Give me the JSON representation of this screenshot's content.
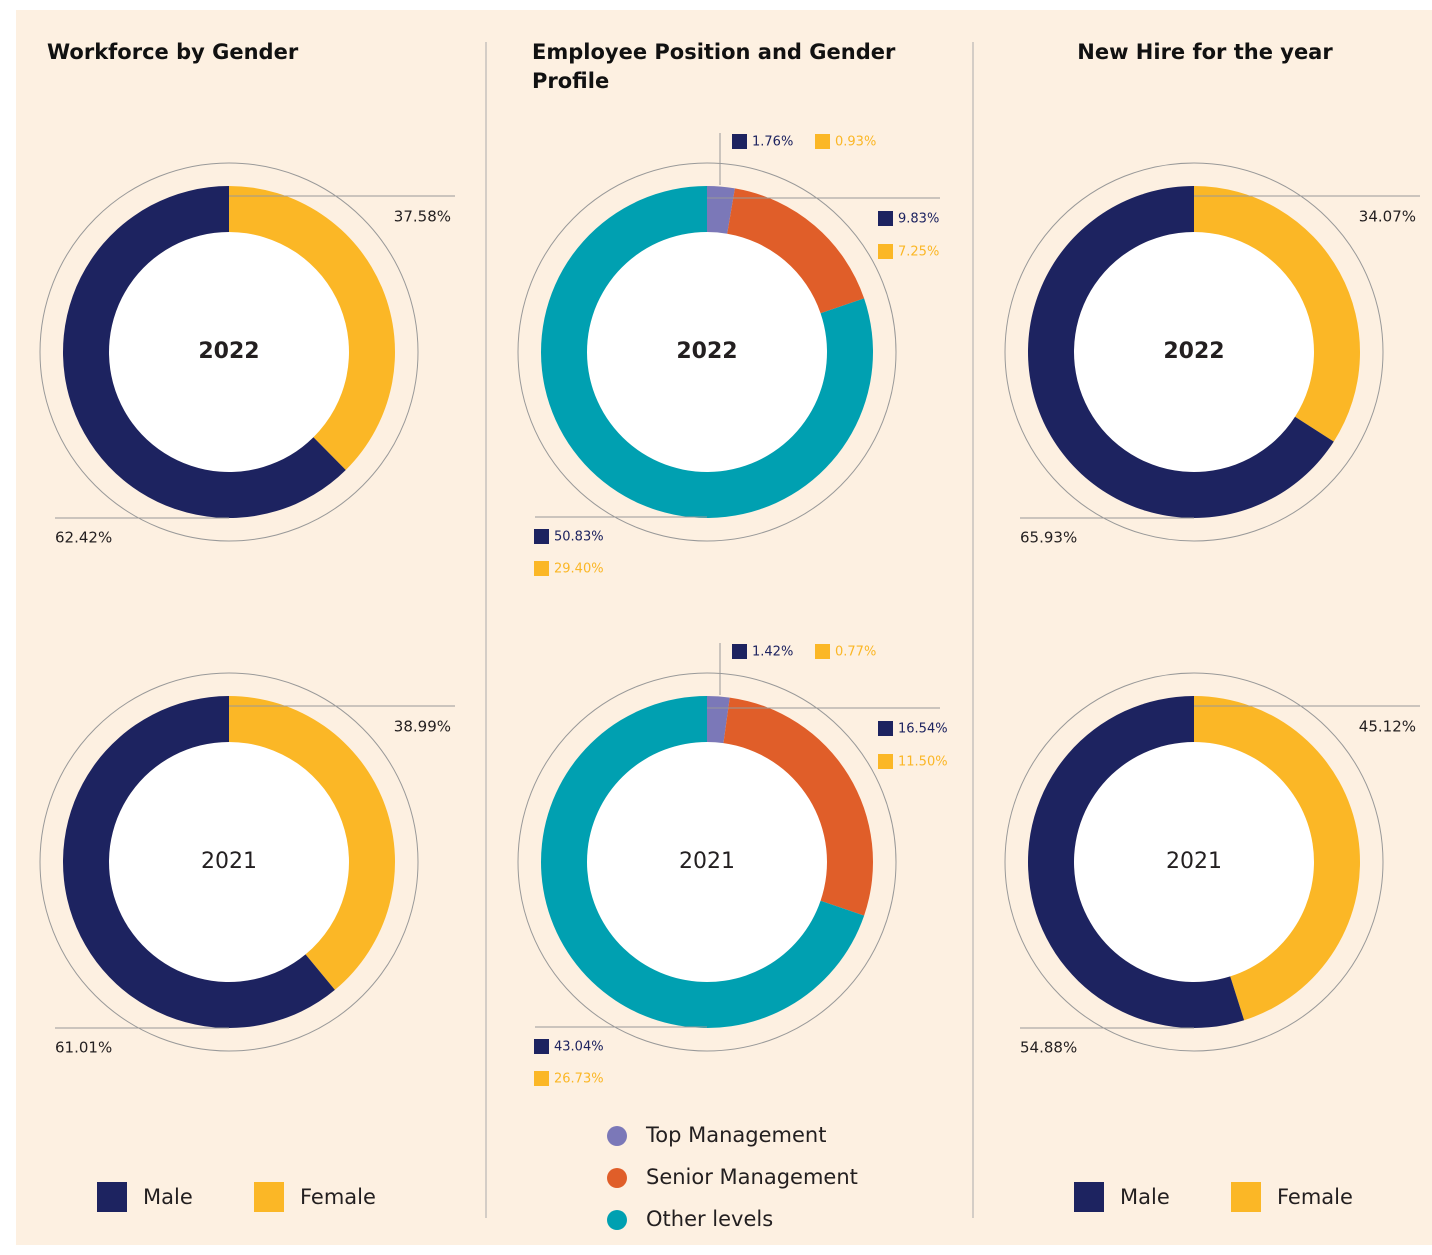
{
  "chart_data": [
    {
      "title": "Workforce by Gender",
      "legend": [
        {
          "name": "Male",
          "color": "#1d2360"
        },
        {
          "name": "Female",
          "color": "#fbb726"
        }
      ],
      "charts": [
        {
          "type": "pie",
          "center_label": "2022",
          "values": [
            62.42,
            37.58
          ],
          "value_labels": [
            "62.42%",
            "37.58%"
          ]
        },
        {
          "type": "pie",
          "center_label": "2021",
          "values": [
            61.01,
            38.99
          ],
          "value_labels": [
            "61.01%",
            "38.99%"
          ]
        }
      ]
    },
    {
      "title": "Employee Position and Gender Profile",
      "legend": [
        {
          "name": "Top Management",
          "color": "#7b78b8"
        },
        {
          "name": "Senior Management",
          "color": "#e05e29"
        },
        {
          "name": "Other levels",
          "color": "#00a0b1"
        }
      ],
      "male_color": "#1d2360",
      "female_color": "#fbb726",
      "charts": [
        {
          "type": "stacked_pie",
          "center_label": "2022",
          "male": [
            1.76,
            9.83,
            50.83
          ],
          "female": [
            0.93,
            7.25,
            29.4
          ],
          "male_labels": [
            "1.76%",
            "9.83%",
            "50.83%"
          ],
          "female_labels": [
            "0.93%",
            "7.25%",
            "29.40%"
          ]
        },
        {
          "type": "stacked_pie",
          "center_label": "2021",
          "male": [
            1.42,
            16.54,
            43.04
          ],
          "female": [
            0.77,
            11.5,
            26.73
          ],
          "male_labels": [
            "1.42%",
            "16.54%",
            "43.04%"
          ],
          "female_labels": [
            "0.77%",
            "11.50%",
            "26.73%"
          ]
        }
      ]
    },
    {
      "title": "New Hire for the year",
      "legend": [
        {
          "name": "Male",
          "color": "#1d2360"
        },
        {
          "name": "Female",
          "color": "#fbb726"
        }
      ],
      "charts": [
        {
          "type": "pie",
          "center_label": "2022",
          "values": [
            65.93,
            34.07
          ],
          "value_labels": [
            "65.93%",
            "34.07%"
          ]
        },
        {
          "type": "pie",
          "center_label": "2021",
          "values": [
            54.88,
            45.12
          ],
          "value_labels": [
            "54.88%",
            "45.12%"
          ]
        }
      ]
    }
  ]
}
